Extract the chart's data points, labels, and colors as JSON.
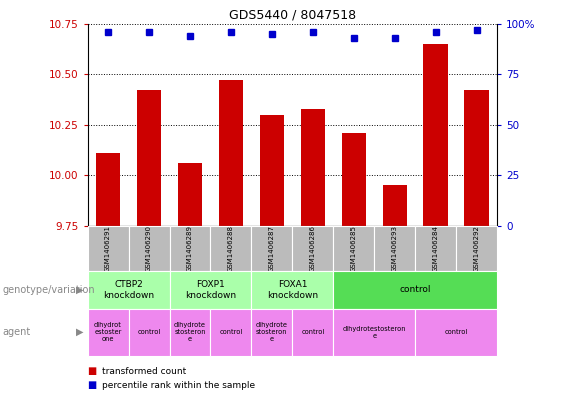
{
  "title": "GDS5440 / 8047518",
  "samples": [
    "GSM1406291",
    "GSM1406290",
    "GSM1406289",
    "GSM1406288",
    "GSM1406287",
    "GSM1406286",
    "GSM1406285",
    "GSM1406293",
    "GSM1406284",
    "GSM1406292"
  ],
  "bar_values": [
    10.11,
    10.42,
    10.06,
    10.47,
    10.3,
    10.33,
    10.21,
    9.95,
    10.65,
    10.42
  ],
  "percentile_values": [
    96,
    96,
    94,
    96,
    95,
    96,
    93,
    93,
    96,
    97
  ],
  "bar_color": "#cc0000",
  "dot_color": "#0000cc",
  "ylim_left": [
    9.75,
    10.75
  ],
  "ylim_right": [
    0,
    100
  ],
  "yticks_left": [
    9.75,
    10.0,
    10.25,
    10.5,
    10.75
  ],
  "yticks_right": [
    0,
    25,
    50,
    75,
    100
  ],
  "genotype_groups": [
    {
      "label": "CTBP2\nknockdown",
      "start": 0,
      "end": 2,
      "color": "#aaffaa"
    },
    {
      "label": "FOXP1\nknockdown",
      "start": 2,
      "end": 4,
      "color": "#aaffaa"
    },
    {
      "label": "FOXA1\nknockdown",
      "start": 4,
      "end": 6,
      "color": "#aaffaa"
    },
    {
      "label": "control",
      "start": 6,
      "end": 10,
      "color": "#55dd55"
    }
  ],
  "agent_groups": [
    {
      "label": "dihydrot\nestoster\none",
      "start": 0,
      "end": 1,
      "color": "#ee88ee"
    },
    {
      "label": "control",
      "start": 1,
      "end": 2,
      "color": "#ee88ee"
    },
    {
      "label": "dihydrote\nstosteron\ne",
      "start": 2,
      "end": 3,
      "color": "#ee88ee"
    },
    {
      "label": "control",
      "start": 3,
      "end": 4,
      "color": "#ee88ee"
    },
    {
      "label": "dihydrote\nstosteron\ne",
      "start": 4,
      "end": 5,
      "color": "#ee88ee"
    },
    {
      "label": "control",
      "start": 5,
      "end": 6,
      "color": "#ee88ee"
    },
    {
      "label": "dihydrotestosteron\ne",
      "start": 6,
      "end": 8,
      "color": "#ee88ee"
    },
    {
      "label": "control",
      "start": 8,
      "end": 10,
      "color": "#ee88ee"
    }
  ],
  "legend_bar_label": "transformed count",
  "legend_dot_label": "percentile rank within the sample",
  "genotype_label": "genotype/variation",
  "agent_label": "agent",
  "bg_color": "#ffffff",
  "sample_bg_color": "#bbbbbb"
}
